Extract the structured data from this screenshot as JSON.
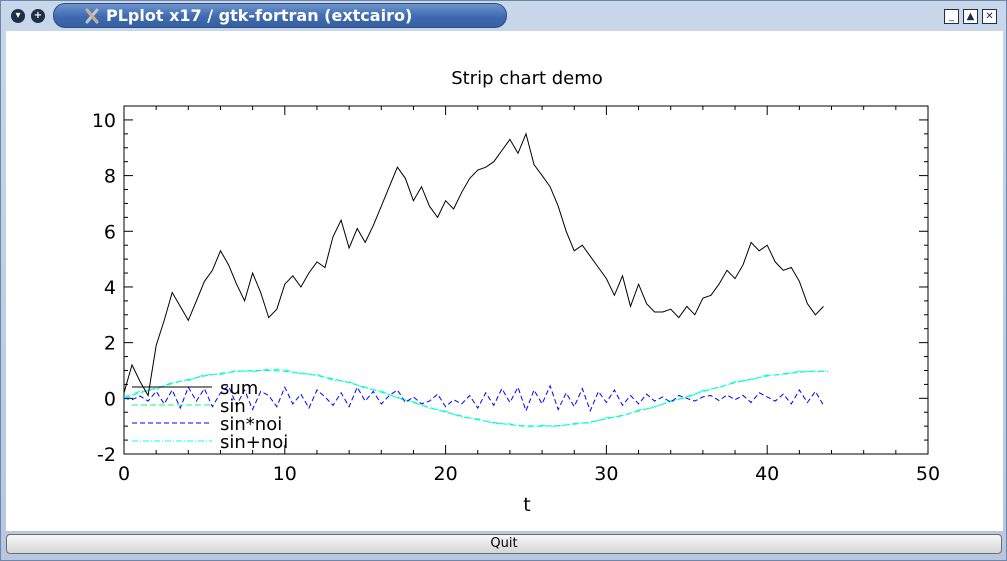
{
  "window": {
    "title": "PLplot x17 / gtk-fortran (extcairo)",
    "menu_glyph": "▾",
    "expand_glyph": "+",
    "minimize_glyph": "_",
    "maximize_glyph": "▲",
    "close_glyph": "✕"
  },
  "quit_button": {
    "label": "Quit"
  },
  "colors": {
    "sum": "#000000",
    "sin": "#00ff7f",
    "sin_noi": "#0000ff",
    "sin_plus_noi": "#00ffff"
  },
  "chart_data": {
    "type": "line",
    "title": "Strip chart demo",
    "xlabel": "t",
    "ylabel": "",
    "xlim": [
      0,
      50
    ],
    "ylim": [
      -2,
      10.5
    ],
    "x_ticks": [
      "0",
      "10",
      "20",
      "30",
      "40",
      "50"
    ],
    "y_ticks": [
      "-2",
      "0",
      "2",
      "4",
      "6",
      "8",
      "10"
    ],
    "legend_position": "bottom-left",
    "series": [
      {
        "name": "sum",
        "style": "solid",
        "x": [
          0,
          0.5,
          1,
          1.5,
          2,
          2.5,
          3,
          3.5,
          4,
          4.5,
          5,
          5.5,
          6,
          6.5,
          7,
          7.5,
          8,
          8.5,
          9,
          9.5,
          10,
          10.5,
          11,
          11.5,
          12,
          12.5,
          13,
          13.5,
          14,
          14.5,
          15,
          15.5,
          16,
          16.5,
          17,
          17.5,
          18,
          18.5,
          19,
          19.5,
          20,
          20.5,
          21,
          21.5,
          22,
          22.5,
          23,
          23.5,
          24,
          24.5,
          25,
          25.5,
          26,
          26.5,
          27,
          27.5,
          28,
          28.5,
          29,
          29.5,
          30,
          30.5,
          31,
          31.5,
          32,
          32.5,
          33,
          33.5,
          34,
          34.5,
          35,
          35.5,
          36,
          36.5,
          37,
          37.5,
          38,
          38.5,
          39,
          39.5,
          40,
          40.5,
          41,
          41.5,
          42,
          42.5,
          43,
          43.5
        ],
        "values": [
          0.2,
          1.2,
          0.6,
          0.1,
          1.9,
          2.8,
          3.8,
          3.3,
          2.8,
          3.5,
          4.2,
          4.6,
          5.3,
          4.8,
          4.1,
          3.5,
          4.5,
          3.8,
          2.9,
          3.2,
          4.1,
          4.4,
          4.0,
          4.5,
          4.9,
          4.7,
          5.8,
          6.4,
          5.4,
          6.1,
          5.6,
          6.2,
          6.9,
          7.6,
          8.3,
          7.9,
          7.1,
          7.6,
          6.9,
          6.5,
          7.1,
          6.8,
          7.4,
          7.9,
          8.2,
          8.3,
          8.5,
          8.9,
          9.3,
          8.8,
          9.5,
          8.4,
          8.0,
          7.6,
          6.9,
          6.0,
          5.3,
          5.5,
          5.1,
          4.7,
          4.3,
          3.7,
          4.4,
          3.3,
          4.1,
          3.4,
          3.1,
          3.1,
          3.2,
          2.9,
          3.3,
          3.0,
          3.6,
          3.7,
          4.1,
          4.6,
          4.3,
          4.8,
          5.6,
          5.3,
          5.5,
          4.9,
          4.6,
          4.7,
          4.2,
          3.4,
          3.0,
          3.3
        ]
      },
      {
        "name": "sin",
        "style": "dashed",
        "x": [
          0,
          1,
          2,
          3,
          4,
          5,
          6,
          7,
          8,
          9,
          10,
          11,
          12,
          13,
          14,
          15,
          16,
          17,
          18,
          19,
          20,
          21,
          22,
          23,
          24,
          25,
          26,
          27,
          28,
          29,
          30,
          31,
          32,
          33,
          34,
          35,
          36,
          37,
          38,
          39,
          40,
          41,
          42,
          43,
          43.8
        ],
        "values": [
          0.0,
          0.2,
          0.37,
          0.53,
          0.68,
          0.8,
          0.9,
          0.96,
          1.0,
          1.0,
          0.97,
          0.91,
          0.82,
          0.7,
          0.56,
          0.4,
          0.22,
          0.04,
          -0.15,
          -0.33,
          -0.5,
          -0.64,
          -0.77,
          -0.87,
          -0.95,
          -0.99,
          -1.0,
          -0.98,
          -0.93,
          -0.85,
          -0.74,
          -0.61,
          -0.46,
          -0.3,
          -0.12,
          0.06,
          0.24,
          0.41,
          0.56,
          0.69,
          0.8,
          0.88,
          0.94,
          0.98,
          0.96
        ]
      },
      {
        "name": "sin*noi",
        "style": "dashed",
        "x": [
          0,
          0.5,
          1,
          1.5,
          2,
          2.5,
          3,
          3.5,
          4,
          4.5,
          5,
          5.5,
          6,
          6.5,
          7,
          7.5,
          8,
          8.5,
          9,
          9.5,
          10,
          10.5,
          11,
          11.5,
          12,
          12.5,
          13,
          13.5,
          14,
          14.5,
          15,
          15.5,
          16,
          16.5,
          17,
          17.5,
          18,
          18.5,
          19,
          19.5,
          20,
          20.5,
          21,
          21.5,
          22,
          22.5,
          23,
          23.5,
          24,
          24.5,
          25,
          25.5,
          26,
          26.5,
          27,
          27.5,
          28,
          28.5,
          29,
          29.5,
          30,
          30.5,
          31,
          31.5,
          32,
          32.5,
          33,
          33.5,
          34,
          34.5,
          35,
          35.5,
          36,
          36.5,
          37,
          37.5,
          38,
          38.5,
          39,
          39.5,
          40,
          40.5,
          41,
          41.5,
          42,
          42.5,
          43,
          43.5
        ],
        "values": [
          0.0,
          -0.05,
          0.08,
          -0.1,
          0.25,
          -0.2,
          0.3,
          -0.35,
          0.4,
          -0.1,
          0.35,
          -0.3,
          0.2,
          0.45,
          -0.25,
          0.3,
          -0.4,
          0.25,
          0.1,
          -0.3,
          0.4,
          -0.2,
          0.15,
          -0.35,
          0.3,
          0.05,
          -0.25,
          0.2,
          -0.3,
          0.4,
          -0.1,
          0.25,
          -0.2,
          0.1,
          0.3,
          -0.15,
          0.05,
          -0.2,
          -0.1,
          0.15,
          -0.3,
          -0.05,
          -0.2,
          0.1,
          -0.35,
          0.2,
          -0.25,
          0.35,
          -0.15,
          0.4,
          -0.45,
          0.3,
          -0.2,
          0.45,
          -0.4,
          0.2,
          -0.3,
          0.35,
          -0.45,
          0.25,
          -0.15,
          0.3,
          -0.25,
          0.1,
          -0.2,
          0.15,
          -0.1,
          0.05,
          -0.15,
          0.1,
          0.0,
          -0.1,
          0.05,
          0.1,
          -0.08,
          0.12,
          -0.05,
          0.1,
          -0.15,
          0.2,
          0.05,
          -0.1,
          0.15,
          -0.2,
          0.3,
          -0.15,
          0.25,
          -0.25
        ]
      },
      {
        "name": "sin+noi",
        "style": "dash-dot",
        "x": [
          0,
          1,
          2,
          3,
          4,
          5,
          6,
          7,
          8,
          9,
          10,
          11,
          12,
          13,
          14,
          15,
          16,
          17,
          18,
          19,
          20,
          21,
          22,
          23,
          24,
          25,
          26,
          27,
          28,
          29,
          30,
          31,
          32,
          33,
          34,
          35,
          36,
          37,
          38,
          39,
          40,
          41,
          42,
          43,
          43.8
        ],
        "values": [
          0.05,
          0.25,
          0.32,
          0.58,
          0.64,
          0.85,
          0.86,
          1.0,
          0.95,
          1.05,
          1.02,
          0.88,
          0.86,
          0.65,
          0.6,
          0.36,
          0.27,
          0.0,
          -0.12,
          -0.36,
          -0.46,
          -0.68,
          -0.74,
          -0.9,
          -0.92,
          -1.03,
          -0.97,
          -1.02,
          -0.9,
          -0.88,
          -0.7,
          -0.64,
          -0.42,
          -0.33,
          -0.08,
          0.02,
          0.28,
          0.38,
          0.6,
          0.66,
          0.84,
          0.85,
          0.98,
          0.95,
          1.0
        ]
      }
    ]
  }
}
